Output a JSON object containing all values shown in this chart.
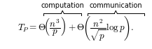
{
  "figsize": [
    2.17,
    0.7
  ],
  "dpi": 100,
  "background_color": "#ffffff",
  "equation": "$T_P = \\Theta\\!\\left(\\dfrac{n^3}{p}\\right) + \\Theta\\!\\left(\\dfrac{n^2}{\\sqrt{p}}\\log p\\right).$",
  "label_computation": "computation",
  "label_communication": "communication",
  "text_color": "#000000",
  "font_size_eq": 9.5,
  "font_size_label": 7.0
}
